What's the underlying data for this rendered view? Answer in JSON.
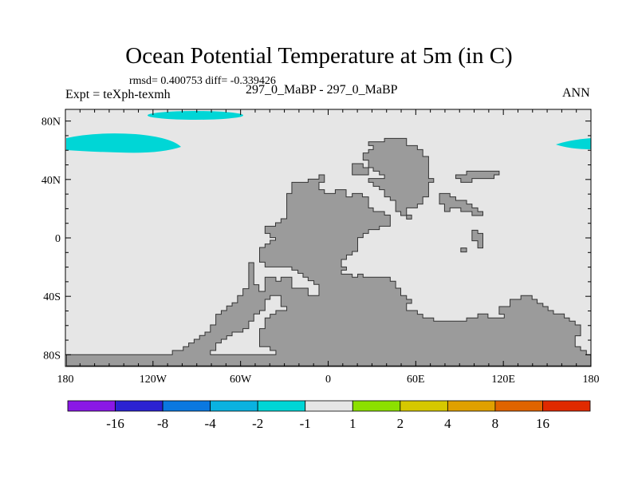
{
  "chart_data": {
    "type": "map",
    "title": "Ocean Potential Temperature at 5m (in C)",
    "stats_text": "rmsd= 0.400753 diff= -0.339426",
    "left_label": "Expt = teXph-texmh",
    "center_label": "297_0_MaBP - 297_0_MaBP",
    "right_label": "ANN",
    "x_range": [
      -180,
      180
    ],
    "y_range": [
      -88,
      88
    ],
    "x_ticks": [
      {
        "value": -180,
        "label": "180"
      },
      {
        "value": -120,
        "label": "120W"
      },
      {
        "value": -60,
        "label": "60W"
      },
      {
        "value": 0,
        "label": "0"
      },
      {
        "value": 60,
        "label": "60E"
      },
      {
        "value": 120,
        "label": "120E"
      },
      {
        "value": 180,
        "label": "180"
      }
    ],
    "y_ticks": [
      {
        "value": 80,
        "label": "80N"
      },
      {
        "value": 40,
        "label": "40N"
      },
      {
        "value": 0,
        "label": "0"
      },
      {
        "value": -40,
        "label": "40S"
      },
      {
        "value": -80,
        "label": "80S"
      }
    ],
    "colorbar": {
      "levels": [
        "-16",
        "-8",
        "-4",
        "-2",
        "-1",
        "1",
        "2",
        "4",
        "8",
        "16"
      ],
      "colors": [
        "#8a18e6",
        "#2b22d2",
        "#0a78e0",
        "#0ab2e0",
        "#00d6d6",
        "#e6e6e6",
        "#8ce000",
        "#d6c800",
        "#e0a000",
        "#e06400",
        "#e02a00"
      ]
    },
    "ocean_color": "#e6e6e6",
    "land_color": "#9b9b9b",
    "anomaly_color": "#00d6d6"
  }
}
